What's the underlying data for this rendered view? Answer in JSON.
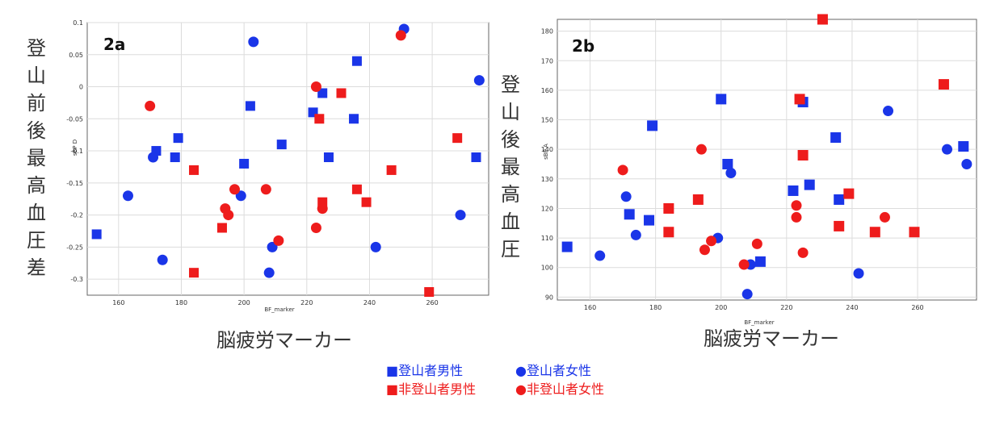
{
  "colors": {
    "climber": "#1a35e8",
    "non_climber": "#ee1c1c"
  },
  "legend": {
    "items": [
      {
        "key": "climber_male",
        "marker": "square",
        "color_key": "climber",
        "text": "■登山者男性"
      },
      {
        "key": "climber_female",
        "marker": "circle",
        "color_key": "climber",
        "text": "●登山者女性"
      },
      {
        "key": "non_climber_male",
        "marker": "square",
        "color_key": "non_climber",
        "text": "■非登山者男性"
      },
      {
        "key": "non_climber_female",
        "marker": "circle",
        "color_key": "non_climber",
        "text": "●非登山者女性"
      }
    ]
  },
  "chart_data": [
    {
      "type": "scatter",
      "panel_label": "2a",
      "xlabel": "BF_marker",
      "ylabel": "sBP D",
      "big_xlabel": "脳疲労マーカー",
      "big_ylabel": "登山前後最高血圧差",
      "xlim": [
        150,
        278
      ],
      "ylim": [
        -0.325,
        0.1
      ],
      "xticks": [
        "160",
        "180",
        "200",
        "220",
        "240",
        "260"
      ],
      "xtick_values": [
        160,
        180,
        200,
        220,
        240,
        260
      ],
      "yticks": [
        "0.1",
        "0.05",
        "0",
        "-0.05",
        "-0.1",
        "-0.15",
        "-0.2",
        "-0.25",
        "-0.3"
      ],
      "ytick_values": [
        0.1,
        0.05,
        0,
        -0.05,
        -0.1,
        -0.15,
        -0.2,
        -0.25,
        -0.3
      ],
      "grid": true,
      "series": [
        {
          "name": "登山者男性",
          "marker": "square",
          "color_key": "climber",
          "points": [
            [
              153,
              -0.23
            ],
            [
              172,
              -0.1
            ],
            [
              178,
              -0.11
            ],
            [
              179,
              -0.08
            ],
            [
              200,
              -0.12
            ],
            [
              202,
              -0.03
            ],
            [
              212,
              -0.09
            ],
            [
              222,
              -0.04
            ],
            [
              225,
              -0.01
            ],
            [
              227,
              -0.11
            ],
            [
              235,
              -0.05
            ],
            [
              236,
              0.04
            ],
            [
              274,
              -0.11
            ]
          ]
        },
        {
          "name": "登山者女性",
          "marker": "circle",
          "color_key": "climber",
          "points": [
            [
              163,
              -0.17
            ],
            [
              171,
              -0.11
            ],
            [
              174,
              -0.27
            ],
            [
              199,
              -0.17
            ],
            [
              203,
              0.07
            ],
            [
              208,
              -0.29
            ],
            [
              209,
              -0.25
            ],
            [
              242,
              -0.25
            ],
            [
              251,
              0.09
            ],
            [
              269,
              -0.2
            ],
            [
              275,
              0.01
            ]
          ]
        },
        {
          "name": "非登山者男性",
          "marker": "square",
          "color_key": "non_climber",
          "points": [
            [
              184,
              -0.13
            ],
            [
              184,
              -0.29
            ],
            [
              193,
              -0.22
            ],
            [
              224,
              -0.05
            ],
            [
              225,
              -0.18
            ],
            [
              231,
              -0.01
            ],
            [
              236,
              -0.16
            ],
            [
              239,
              -0.18
            ],
            [
              247,
              -0.13
            ],
            [
              259,
              -0.32
            ],
            [
              268,
              -0.08
            ]
          ]
        },
        {
          "name": "非登山者女性",
          "marker": "circle",
          "color_key": "non_climber",
          "points": [
            [
              170,
              -0.03
            ],
            [
              194,
              -0.19
            ],
            [
              195,
              -0.2
            ],
            [
              197,
              -0.16
            ],
            [
              207,
              -0.16
            ],
            [
              211,
              -0.24
            ],
            [
              223,
              0.0
            ],
            [
              223,
              -0.22
            ],
            [
              225,
              -0.19
            ],
            [
              250,
              0.08
            ]
          ]
        }
      ]
    },
    {
      "type": "scatter",
      "panel_label": "2b",
      "xlabel": "BF_marker",
      "ylabel": "sBP A",
      "big_xlabel": "脳疲労マーカー",
      "big_ylabel": "登山後最高血圧",
      "xlim": [
        150,
        278
      ],
      "ylim": [
        89,
        184
      ],
      "xticks": [
        "160",
        "180",
        "200",
        "220",
        "240",
        "260"
      ],
      "xtick_values": [
        160,
        180,
        200,
        220,
        240,
        260
      ],
      "yticks": [
        "180",
        "170",
        "160",
        "150",
        "140",
        "130",
        "120",
        "110",
        "100",
        "90"
      ],
      "ytick_values": [
        180,
        170,
        160,
        150,
        140,
        130,
        120,
        110,
        100,
        90
      ],
      "grid": true,
      "series": [
        {
          "name": "登山者男性",
          "marker": "square",
          "color_key": "climber",
          "points": [
            [
              153,
              107
            ],
            [
              172,
              118
            ],
            [
              178,
              116
            ],
            [
              179,
              148
            ],
            [
              200,
              157
            ],
            [
              202,
              135
            ],
            [
              212,
              102
            ],
            [
              222,
              126
            ],
            [
              225,
              156
            ],
            [
              227,
              128
            ],
            [
              235,
              144
            ],
            [
              236,
              123
            ],
            [
              274,
              141
            ]
          ]
        },
        {
          "name": "登山者女性",
          "marker": "circle",
          "color_key": "climber",
          "points": [
            [
              163,
              104
            ],
            [
              171,
              124
            ],
            [
              174,
              111
            ],
            [
              199,
              110
            ],
            [
              203,
              132
            ],
            [
              208,
              91
            ],
            [
              209,
              101
            ],
            [
              242,
              98
            ],
            [
              251,
              153
            ],
            [
              269,
              140
            ],
            [
              275,
              135
            ]
          ]
        },
        {
          "name": "非登山者男性",
          "marker": "square",
          "color_key": "non_climber",
          "points": [
            [
              184,
              120
            ],
            [
              184,
              112
            ],
            [
              193,
              123
            ],
            [
              224,
              157
            ],
            [
              225,
              138
            ],
            [
              231,
              184
            ],
            [
              236,
              114
            ],
            [
              239,
              125
            ],
            [
              247,
              112
            ],
            [
              259,
              112
            ],
            [
              268,
              162
            ]
          ]
        },
        {
          "name": "非登山者女性",
          "marker": "circle",
          "color_key": "non_climber",
          "points": [
            [
              170,
              133
            ],
            [
              194,
              140
            ],
            [
              195,
              106
            ],
            [
              197,
              109
            ],
            [
              207,
              101
            ],
            [
              211,
              108
            ],
            [
              223,
              121
            ],
            [
              223,
              117
            ],
            [
              225,
              105
            ],
            [
              250,
              117
            ]
          ]
        }
      ]
    }
  ]
}
